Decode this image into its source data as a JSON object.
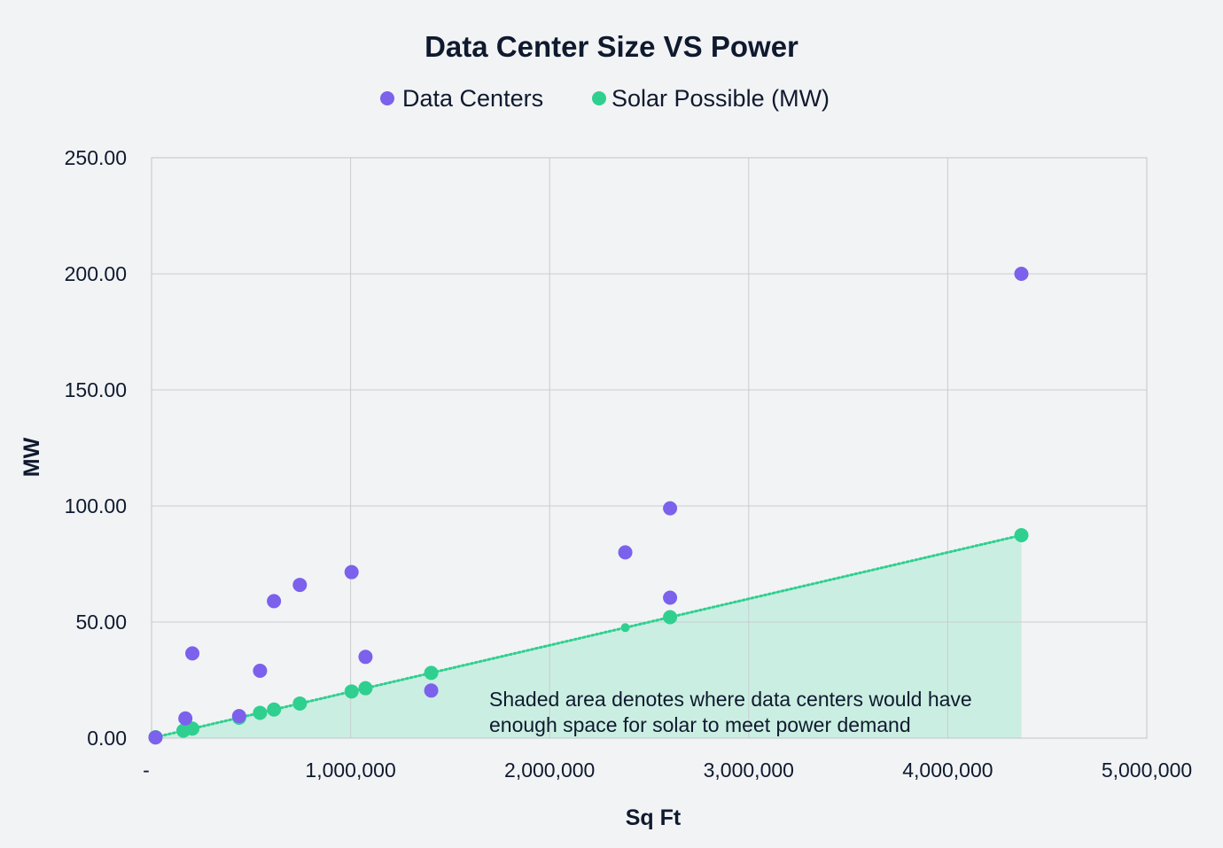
{
  "chart_data": {
    "type": "scatter",
    "title": "Data Center Size VS Power",
    "xlabel": "Sq Ft",
    "ylabel": "MW",
    "xlim": [
      0,
      5000000
    ],
    "ylim": [
      0,
      250
    ],
    "x_ticks": [
      0,
      1000000,
      2000000,
      3000000,
      4000000,
      5000000
    ],
    "x_tick_labels": [
      "-",
      "1,000,000",
      "2,000,000",
      "3,000,000",
      "4,000,000",
      "5,000,000"
    ],
    "y_ticks": [
      0,
      50,
      100,
      150,
      200,
      250
    ],
    "y_tick_labels": [
      "0.00",
      "50.00",
      "100.00",
      "150.00",
      "200.00",
      "250.00"
    ],
    "grid": true,
    "legend_position": "top-center",
    "annotation": {
      "line1": "Shaded area denotes where data centers would have",
      "line2": "enough space for solar to meet power demand"
    },
    "shaded_area": {
      "description_ref": "annotation",
      "x_range": [
        0,
        4370000
      ],
      "color": "#c8ede0"
    },
    "trendline": {
      "series": "Solar Possible (MW)",
      "style": "dotted",
      "slope_mw_per_sqft": 2e-05,
      "x_range": [
        0,
        4370000
      ]
    },
    "series": [
      {
        "name": "Data Centers",
        "color": "#7b61ec",
        "points": [
          {
            "x": 20000,
            "y": 0.3
          },
          {
            "x": 170000,
            "y": 8.5
          },
          {
            "x": 205000,
            "y": 36.5
          },
          {
            "x": 440000,
            "y": 9.5
          },
          {
            "x": 545000,
            "y": 29
          },
          {
            "x": 615000,
            "y": 59
          },
          {
            "x": 745000,
            "y": 66
          },
          {
            "x": 1005000,
            "y": 71.5
          },
          {
            "x": 1075000,
            "y": 35
          },
          {
            "x": 1405000,
            "y": 20.5
          },
          {
            "x": 2380000,
            "y": 80
          },
          {
            "x": 2605000,
            "y": 99
          },
          {
            "x": 2605000,
            "y": 60.5
          },
          {
            "x": 4370000,
            "y": 200
          }
        ]
      },
      {
        "name": "Solar Possible (MW)",
        "color": "#2fd08f",
        "points": [
          {
            "x": 20000,
            "y": 0.4
          },
          {
            "x": 160000,
            "y": 3.2
          },
          {
            "x": 205000,
            "y": 4.1
          },
          {
            "x": 440000,
            "y": 8.8
          },
          {
            "x": 545000,
            "y": 10.9
          },
          {
            "x": 615000,
            "y": 12.3
          },
          {
            "x": 745000,
            "y": 14.9
          },
          {
            "x": 1005000,
            "y": 20.1
          },
          {
            "x": 1075000,
            "y": 21.5
          },
          {
            "x": 1405000,
            "y": 28.1
          },
          {
            "x": 2380000,
            "y": 47.6,
            "small": true
          },
          {
            "x": 2605000,
            "y": 52.1
          },
          {
            "x": 4370000,
            "y": 87.4
          }
        ]
      }
    ]
  }
}
